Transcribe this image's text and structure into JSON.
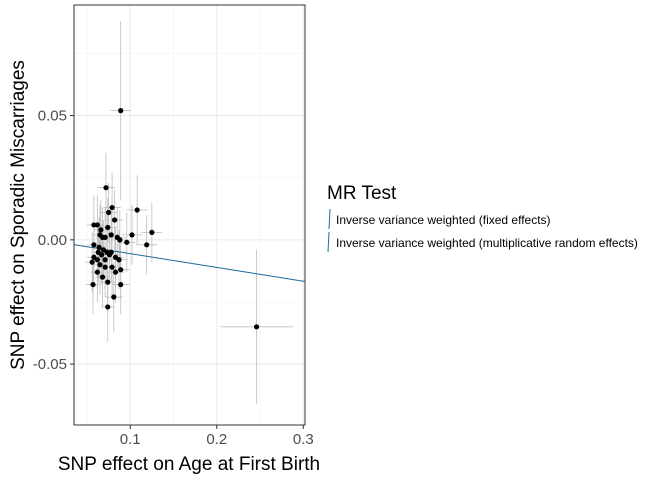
{
  "chart_data": {
    "type": "scatter",
    "xlabel": "SNP effect on Age at First Birth",
    "ylabel": "SNP effect on Sporadic Miscarriages",
    "xlim": [
      0.035,
      0.302
    ],
    "ylim": [
      -0.0745,
      0.0945
    ],
    "x_ticks": [
      0.1,
      0.2,
      0.3
    ],
    "x_tick_labels": [
      "0.1",
      "0.2",
      "0.3"
    ],
    "y_ticks": [
      -0.05,
      0.0,
      0.05
    ],
    "y_tick_labels": [
      "-0.05",
      "0.00",
      "0.05"
    ],
    "grid": true,
    "legend": {
      "title": "MR Test",
      "position": "right",
      "entries": [
        "Inverse variance weighted (fixed effects)",
        "Inverse variance weighted (multiplicative random effects)"
      ]
    },
    "line_color": "#1f6e9c",
    "series": [
      {
        "type": "line",
        "intercept": 0.0,
        "slope": -0.0555
      },
      {
        "type": "scatter",
        "points": [
          {
            "x": 0.089,
            "y": 0.052,
            "xerr": 0.012,
            "yerr": 0.036
          },
          {
            "x": 0.246,
            "y": -0.035,
            "xerr": 0.042,
            "yerr": 0.031
          },
          {
            "x": 0.108,
            "y": 0.012,
            "xerr": 0.012,
            "yerr": 0.014
          },
          {
            "x": 0.125,
            "y": 0.003,
            "xerr": 0.012,
            "yerr": 0.012
          },
          {
            "x": 0.119,
            "y": -0.002,
            "xerr": 0.012,
            "yerr": 0.012
          },
          {
            "x": 0.102,
            "y": 0.002,
            "xerr": 0.012,
            "yerr": 0.012
          },
          {
            "x": 0.072,
            "y": 0.021,
            "xerr": 0.01,
            "yerr": 0.014
          },
          {
            "x": 0.079,
            "y": 0.013,
            "xerr": 0.01,
            "yerr": 0.014
          },
          {
            "x": 0.075,
            "y": 0.011,
            "xerr": 0.01,
            "yerr": 0.012
          },
          {
            "x": 0.082,
            "y": 0.008,
            "xerr": 0.01,
            "yerr": 0.012
          },
          {
            "x": 0.074,
            "y": 0.005,
            "xerr": 0.01,
            "yerr": 0.012
          },
          {
            "x": 0.062,
            "y": 0.006,
            "xerr": 0.008,
            "yerr": 0.012
          },
          {
            "x": 0.058,
            "y": 0.006,
            "xerr": 0.008,
            "yerr": 0.012
          },
          {
            "x": 0.066,
            "y": 0.004,
            "xerr": 0.008,
            "yerr": 0.012
          },
          {
            "x": 0.068,
            "y": 0.001,
            "xerr": 0.008,
            "yerr": 0.012
          },
          {
            "x": 0.071,
            "y": 0.001,
            "xerr": 0.008,
            "yerr": 0.012
          },
          {
            "x": 0.065,
            "y": 0.002,
            "xerr": 0.008,
            "yerr": 0.012
          },
          {
            "x": 0.078,
            "y": 0.002,
            "xerr": 0.01,
            "yerr": 0.012
          },
          {
            "x": 0.085,
            "y": 0.001,
            "xerr": 0.01,
            "yerr": 0.012
          },
          {
            "x": 0.088,
            "y": 0.0,
            "xerr": 0.01,
            "yerr": 0.012
          },
          {
            "x": 0.096,
            "y": -0.001,
            "xerr": 0.01,
            "yerr": 0.012
          },
          {
            "x": 0.058,
            "y": -0.002,
            "xerr": 0.008,
            "yerr": 0.012
          },
          {
            "x": 0.064,
            "y": -0.003,
            "xerr": 0.008,
            "yerr": 0.012
          },
          {
            "x": 0.069,
            "y": -0.004,
            "xerr": 0.008,
            "yerr": 0.012
          },
          {
            "x": 0.073,
            "y": -0.005,
            "xerr": 0.008,
            "yerr": 0.012
          },
          {
            "x": 0.063,
            "y": -0.005,
            "xerr": 0.008,
            "yerr": 0.012
          },
          {
            "x": 0.078,
            "y": -0.005,
            "xerr": 0.01,
            "yerr": 0.012
          },
          {
            "x": 0.076,
            "y": -0.006,
            "xerr": 0.01,
            "yerr": 0.012
          },
          {
            "x": 0.067,
            "y": -0.006,
            "xerr": 0.008,
            "yerr": 0.012
          },
          {
            "x": 0.058,
            "y": -0.007,
            "xerr": 0.008,
            "yerr": 0.012
          },
          {
            "x": 0.062,
            "y": -0.008,
            "xerr": 0.008,
            "yerr": 0.012
          },
          {
            "x": 0.071,
            "y": -0.008,
            "xerr": 0.008,
            "yerr": 0.012
          },
          {
            "x": 0.087,
            "y": -0.008,
            "xerr": 0.01,
            "yerr": 0.012
          },
          {
            "x": 0.083,
            "y": -0.007,
            "xerr": 0.01,
            "yerr": 0.012
          },
          {
            "x": 0.056,
            "y": -0.009,
            "xerr": 0.008,
            "yerr": 0.012
          },
          {
            "x": 0.065,
            "y": -0.01,
            "xerr": 0.008,
            "yerr": 0.012
          },
          {
            "x": 0.071,
            "y": -0.011,
            "xerr": 0.008,
            "yerr": 0.012
          },
          {
            "x": 0.079,
            "y": -0.011,
            "xerr": 0.01,
            "yerr": 0.012
          },
          {
            "x": 0.089,
            "y": -0.012,
            "xerr": 0.01,
            "yerr": 0.012
          },
          {
            "x": 0.083,
            "y": -0.013,
            "xerr": 0.01,
            "yerr": 0.012
          },
          {
            "x": 0.062,
            "y": -0.013,
            "xerr": 0.008,
            "yerr": 0.012
          },
          {
            "x": 0.068,
            "y": -0.015,
            "xerr": 0.008,
            "yerr": 0.012
          },
          {
            "x": 0.074,
            "y": -0.017,
            "xerr": 0.008,
            "yerr": 0.012
          },
          {
            "x": 0.057,
            "y": -0.018,
            "xerr": 0.008,
            "yerr": 0.012
          },
          {
            "x": 0.089,
            "y": -0.018,
            "xerr": 0.01,
            "yerr": 0.012
          },
          {
            "x": 0.081,
            "y": -0.023,
            "xerr": 0.01,
            "yerr": 0.014
          },
          {
            "x": 0.074,
            "y": -0.027,
            "xerr": 0.008,
            "yerr": 0.014
          }
        ]
      }
    ]
  }
}
